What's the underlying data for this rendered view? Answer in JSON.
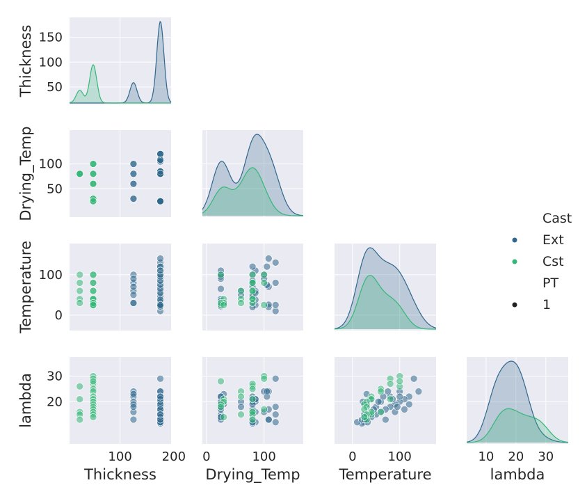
{
  "colors": {
    "ext": "#30678d",
    "cst": "#35b778",
    "panel_bg": "#eaeaf2",
    "grid": "#ffffff",
    "text": "#262626"
  },
  "legend": {
    "hue_title": "Cast",
    "hue_items": [
      "Ext",
      "Cst"
    ],
    "size_title": "PT",
    "size_items": [
      "1"
    ],
    "placement": "right"
  },
  "chart_data": {
    "type": "pairplot",
    "corner": true,
    "variables": [
      "Thickness",
      "Drying_Temp",
      "Temperature",
      "lambda"
    ],
    "axis_ticks": {
      "Thickness": [
        100,
        200
      ],
      "Thickness_y": [
        50,
        100,
        150
      ],
      "Drying_Temp": [
        0,
        100
      ],
      "Drying_Temp_y": [
        50,
        100
      ],
      "Temperature": [
        0,
        100
      ],
      "Temperature_y": [
        0,
        100
      ],
      "lambda": [
        10,
        20,
        30
      ],
      "lambda_y": [
        20,
        30
      ]
    },
    "tick_labels_x": {
      "Thickness": [
        "100",
        "200"
      ],
      "Drying_Temp": [
        "0",
        "100"
      ],
      "Temperature": [
        "0",
        "100"
      ],
      "lambda": [
        "10",
        "20",
        "30"
      ]
    },
    "tick_labels_y": {
      "Thickness": [
        "50",
        "100",
        "150"
      ],
      "Drying_Temp": [
        "50",
        "100"
      ],
      "Temperature": [
        "0",
        "100"
      ],
      "lambda": [
        "20",
        "30"
      ]
    },
    "limits": {
      "Thickness": [
        6,
        195
      ],
      "Drying_Temp": [
        -7,
        168
      ],
      "Temperature": [
        -38,
        177
      ],
      "lambda": [
        3.5,
        37.5
      ]
    },
    "diag_ylim": {
      "Thickness": [
        15,
        190
      ],
      "Drying_Temp": [
        0,
        100
      ],
      "Temperature": [
        0,
        100
      ],
      "lambda": [
        0,
        100
      ]
    },
    "hist_y_ranges": {
      "Drying_Temp": [
        20,
        125
      ],
      "Temperature": [
        -2,
        150
      ],
      "lambda": [
        10,
        31
      ]
    },
    "series": [
      {
        "name": "Ext",
        "points": [
          [
            125,
            100,
            100,
            24
          ],
          [
            125,
            80,
            80,
            22
          ],
          [
            125,
            60,
            60,
            20
          ],
          [
            125,
            30,
            30,
            19
          ],
          [
            125,
            100,
            90,
            16
          ],
          [
            125,
            80,
            70,
            13
          ],
          [
            125,
            60,
            50,
            18
          ],
          [
            125,
            30,
            30,
            23
          ],
          [
            175,
            120,
            130,
            29
          ],
          [
            175,
            108,
            140,
            24
          ],
          [
            175,
            105,
            120,
            22
          ],
          [
            175,
            85,
            110,
            21
          ],
          [
            175,
            80,
            100,
            20
          ],
          [
            175,
            25,
            90,
            19
          ],
          [
            175,
            120,
            80,
            18
          ],
          [
            175,
            108,
            70,
            17
          ],
          [
            175,
            85,
            60,
            16
          ],
          [
            175,
            80,
            50,
            15
          ],
          [
            175,
            25,
            40,
            14
          ],
          [
            175,
            25,
            30,
            13
          ],
          [
            175,
            85,
            25,
            12
          ],
          [
            175,
            80,
            20,
            11.5
          ],
          [
            175,
            120,
            10,
            12
          ],
          [
            175,
            108,
            20,
            13
          ],
          [
            175,
            25,
            35,
            15
          ],
          [
            175,
            80,
            45,
            17
          ],
          [
            175,
            85,
            55,
            20
          ],
          [
            175,
            25,
            65,
            22
          ],
          [
            175,
            105,
            75,
            24
          ],
          [
            175,
            80,
            85,
            21
          ],
          [
            175,
            25,
            95,
            18
          ],
          [
            175,
            25,
            28,
            14
          ],
          [
            175,
            80,
            32,
            12
          ],
          [
            175,
            108,
            26,
            13
          ],
          [
            175,
            25,
            22,
            20
          ],
          [
            175,
            85,
            38,
            21
          ],
          [
            175,
            25,
            100,
            22
          ],
          [
            175,
            80,
            120,
            19
          ],
          [
            175,
            25,
            110,
            17
          ],
          [
            175,
            120,
            25,
            15
          ]
        ]
      },
      {
        "name": "Cst",
        "points": [
          [
            25,
            80,
            100,
            26
          ],
          [
            25,
            80,
            80,
            21
          ],
          [
            25,
            80,
            60,
            16
          ],
          [
            25,
            80,
            40,
            15
          ],
          [
            25,
            80,
            30,
            13
          ],
          [
            50,
            100,
            100,
            30
          ],
          [
            50,
            100,
            80,
            29
          ],
          [
            50,
            80,
            80,
            27
          ],
          [
            50,
            80,
            60,
            25
          ],
          [
            50,
            60,
            60,
            24
          ],
          [
            50,
            60,
            40,
            22
          ],
          [
            50,
            30,
            40,
            21
          ],
          [
            50,
            30,
            30,
            20
          ],
          [
            50,
            25,
            25,
            19
          ],
          [
            50,
            25,
            30,
            18
          ],
          [
            50,
            100,
            25,
            17
          ],
          [
            50,
            80,
            40,
            16
          ],
          [
            50,
            60,
            30,
            15
          ],
          [
            50,
            30,
            25,
            14
          ],
          [
            50,
            25,
            100,
            28
          ]
        ]
      }
    ]
  }
}
